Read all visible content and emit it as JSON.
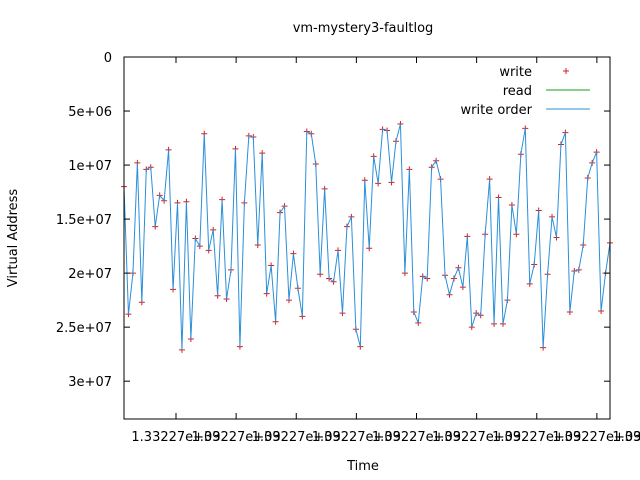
{
  "chart_data": {
    "type": "line",
    "title": "vm-mystery3-faultlog",
    "xlabel": "Time",
    "ylabel": "Virtual Address",
    "ylim": [
      0,
      33500000
    ],
    "y_inverted": true,
    "yticks": [
      {
        "value": 0,
        "label": "0"
      },
      {
        "value": 5000000,
        "label": "5e+06"
      },
      {
        "value": 10000000,
        "label": "1e+07"
      },
      {
        "value": 15000000,
        "label": "1.5e+07"
      },
      {
        "value": 20000000,
        "label": "2e+07"
      },
      {
        "value": 25000000,
        "label": "2.5e+07"
      },
      {
        "value": 30000000,
        "label": "3e+07"
      }
    ],
    "xtick_count": 9,
    "xtick_label": "1.33227e+09",
    "grid": false,
    "legend_position": "top-right",
    "legend": [
      {
        "label": "write",
        "style": "points",
        "color": "#d62020"
      },
      {
        "label": "read",
        "style": "line",
        "color": "#12a012"
      },
      {
        "label": "write order",
        "style": "line",
        "color": "#2a8fd8"
      }
    ],
    "series": [
      {
        "name": "write",
        "style": "points",
        "color": "#d62020",
        "y": [
          12000000,
          23800000,
          20000000,
          9800000,
          22700000,
          10400000,
          10200000,
          15700000,
          12800000,
          13300000,
          8600000,
          21500000,
          13500000,
          27100000,
          13400000,
          26100000,
          16800000,
          17500000,
          7100000,
          17900000,
          16000000,
          22100000,
          13200000,
          22400000,
          19700000,
          8500000,
          26800000,
          13500000,
          7300000,
          7400000,
          17400000,
          8900000,
          21900000,
          19300000,
          24500000,
          14400000,
          13800000,
          22500000,
          18200000,
          21400000,
          24000000,
          6900000,
          7100000,
          9900000,
          20100000,
          12200000,
          20500000,
          20800000,
          17900000,
          23700000,
          15700000,
          14800000,
          25200000,
          26800000,
          11400000,
          17700000,
          9200000,
          11700000,
          6700000,
          6800000,
          11600000,
          7800000,
          6200000,
          20000000,
          10400000,
          23600000,
          24600000,
          20300000,
          20500000,
          10200000,
          9600000,
          11300000,
          20200000,
          22000000,
          20500000,
          19500000,
          21300000,
          16600000,
          25000000,
          23700000,
          23900000,
          16400000,
          11300000,
          24700000,
          13000000,
          24700000,
          22500000,
          13700000,
          16400000,
          9000000,
          6600000,
          21000000,
          19200000,
          14200000,
          26900000,
          20100000,
          14800000,
          16700000,
          8100000,
          7000000,
          23600000,
          19800000,
          19700000,
          17400000,
          11200000,
          9800000,
          8800000,
          23500000,
          20000000,
          17200000
        ]
      },
      {
        "name": "write order",
        "style": "line",
        "color": "#2a8fd8",
        "y": [
          12000000,
          23800000,
          20000000,
          9800000,
          22700000,
          10400000,
          10200000,
          15700000,
          12800000,
          13300000,
          8600000,
          21500000,
          13500000,
          27100000,
          13400000,
          26100000,
          16800000,
          17500000,
          7100000,
          17900000,
          16000000,
          22100000,
          13200000,
          22400000,
          19700000,
          8500000,
          26800000,
          13500000,
          7300000,
          7400000,
          17400000,
          8900000,
          21900000,
          19300000,
          24500000,
          14400000,
          13800000,
          22500000,
          18200000,
          21400000,
          24000000,
          6900000,
          7100000,
          9900000,
          20100000,
          12200000,
          20500000,
          20800000,
          17900000,
          23700000,
          15700000,
          14800000,
          25200000,
          26800000,
          11400000,
          17700000,
          9200000,
          11700000,
          6700000,
          6800000,
          11600000,
          7800000,
          6200000,
          20000000,
          10400000,
          23600000,
          24600000,
          20300000,
          20500000,
          10200000,
          9600000,
          11300000,
          20200000,
          22000000,
          20500000,
          19500000,
          21300000,
          16600000,
          25000000,
          23700000,
          23900000,
          16400000,
          11300000,
          24700000,
          13000000,
          24700000,
          22500000,
          13700000,
          16400000,
          9000000,
          6600000,
          21000000,
          19200000,
          14200000,
          26900000,
          20100000,
          14800000,
          16700000,
          8100000,
          7000000,
          23600000,
          19800000,
          19700000,
          17400000,
          11200000,
          9800000,
          8800000,
          23500000,
          20000000,
          17200000
        ]
      }
    ]
  }
}
